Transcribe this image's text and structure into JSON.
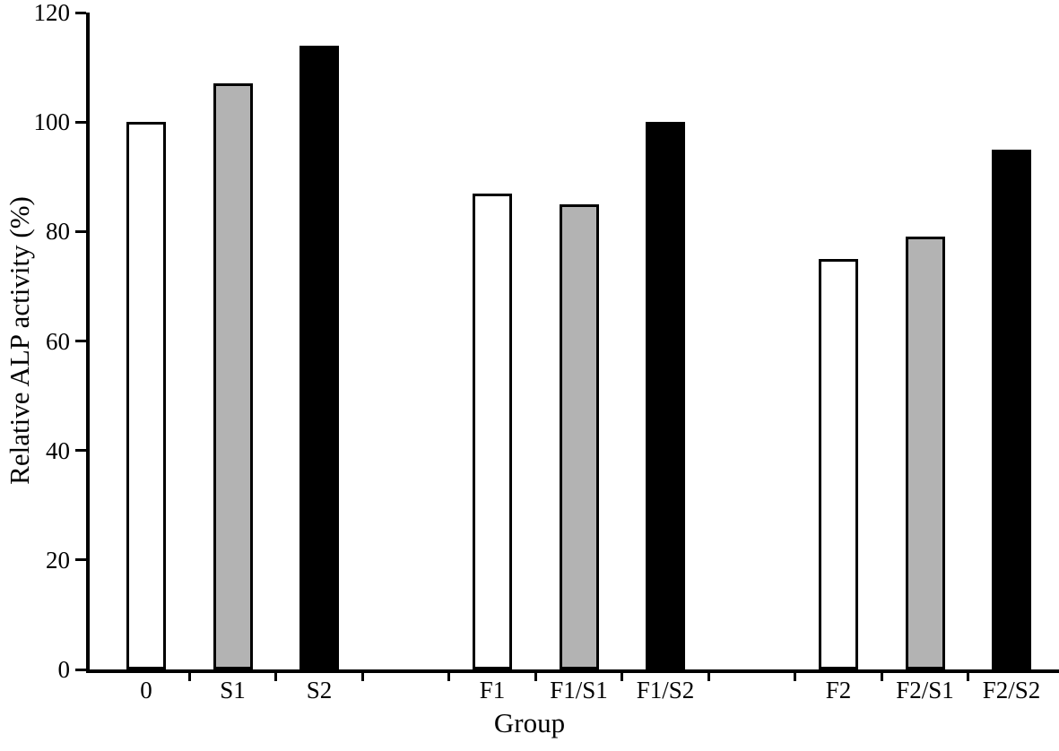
{
  "chart_data": {
    "type": "bar",
    "title": "",
    "xlabel": "Group",
    "ylabel": "Relative ALP activity (%)",
    "ylim": [
      0,
      120
    ],
    "yticks": [
      0,
      20,
      40,
      60,
      80,
      100,
      120
    ],
    "grid": false,
    "legend": "none",
    "categories": [
      "0",
      "S1",
      "S2",
      "F1",
      "F1/S1",
      "F1/S2",
      "F2",
      "F2/S1",
      "F2/S2"
    ],
    "values": [
      100,
      107,
      114,
      87,
      85,
      100,
      75,
      79,
      95
    ],
    "colors": [
      "#ffffff",
      "#b3b3b3",
      "#000000",
      "#ffffff",
      "#b3b3b3",
      "#000000",
      "#ffffff",
      "#b3b3b3",
      "#000000"
    ],
    "bar_outline_color": "#000000",
    "bars_per_cluster": 3,
    "groups": [
      {
        "bars": [
          {
            "category": "0",
            "value": 100,
            "color": "#ffffff"
          },
          {
            "category": "S1",
            "value": 107,
            "color": "#b3b3b3"
          },
          {
            "category": "S2",
            "value": 114,
            "color": "#000000"
          }
        ]
      },
      {
        "bars": [
          {
            "category": "F1",
            "value": 87,
            "color": "#ffffff"
          },
          {
            "category": "F1/S1",
            "value": 85,
            "color": "#b3b3b3"
          },
          {
            "category": "F1/S2",
            "value": 100,
            "color": "#000000"
          }
        ]
      },
      {
        "bars": [
          {
            "category": "F2",
            "value": 75,
            "color": "#ffffff"
          },
          {
            "category": "F2/S1",
            "value": 79,
            "color": "#b3b3b3"
          },
          {
            "category": "F2/S2",
            "value": 95,
            "color": "#000000"
          }
        ]
      }
    ]
  }
}
